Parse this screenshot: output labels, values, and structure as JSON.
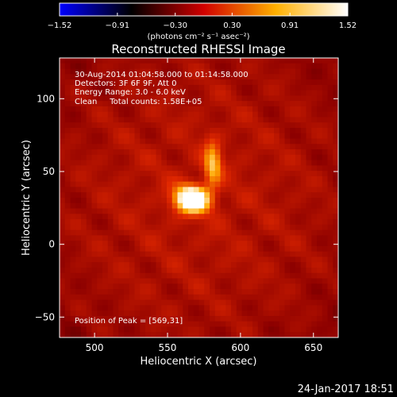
{
  "chart_data": {
    "type": "heatmap",
    "title": "Reconstructed RHESSI Image",
    "xlabel": "Heliocentric X (arcsec)",
    "ylabel": "Heliocentric Y (arcsec)",
    "xlim": [
      476,
      667
    ],
    "ylim": [
      -64,
      128
    ],
    "x_ticks": [
      500,
      550,
      600,
      650
    ],
    "y_ticks": [
      -50,
      0,
      50,
      100
    ],
    "grid": false,
    "colormap": "red-temperature",
    "colorbar": {
      "label": "(photons cm⁻² s⁻¹ asec⁻²)",
      "range": [
        -1.52,
        1.52
      ],
      "ticks": [
        "−1.52",
        "−0.91",
        "−0.30",
        "0.30",
        "0.91",
        "1.52"
      ],
      "stops": [
        "#0000ff",
        "#000000",
        "#d00000",
        "#ffb000",
        "#ffffff"
      ]
    },
    "annotations": [
      "30-Aug-2014 01:04:58.000 to 01:14:58.000",
      "Detectors: 3F 6F 9F, Att 0",
      "Energy Range: 3.0 - 6.0 keV",
      "Clean     Total counts: 1.58E+05"
    ],
    "peak_label": "Position of Peak = [569,31]",
    "peak": [
      569,
      31
    ],
    "sources": [
      {
        "x": 567,
        "y": 31,
        "sx": 8,
        "sy": 6,
        "amp": 1.0
      },
      {
        "x": 581,
        "y": 55,
        "sx": 4,
        "sy": 10,
        "amp": 0.45
      }
    ],
    "background_level": 0.38
  },
  "footer": {
    "date": "24-Jan-2017 18:51"
  }
}
